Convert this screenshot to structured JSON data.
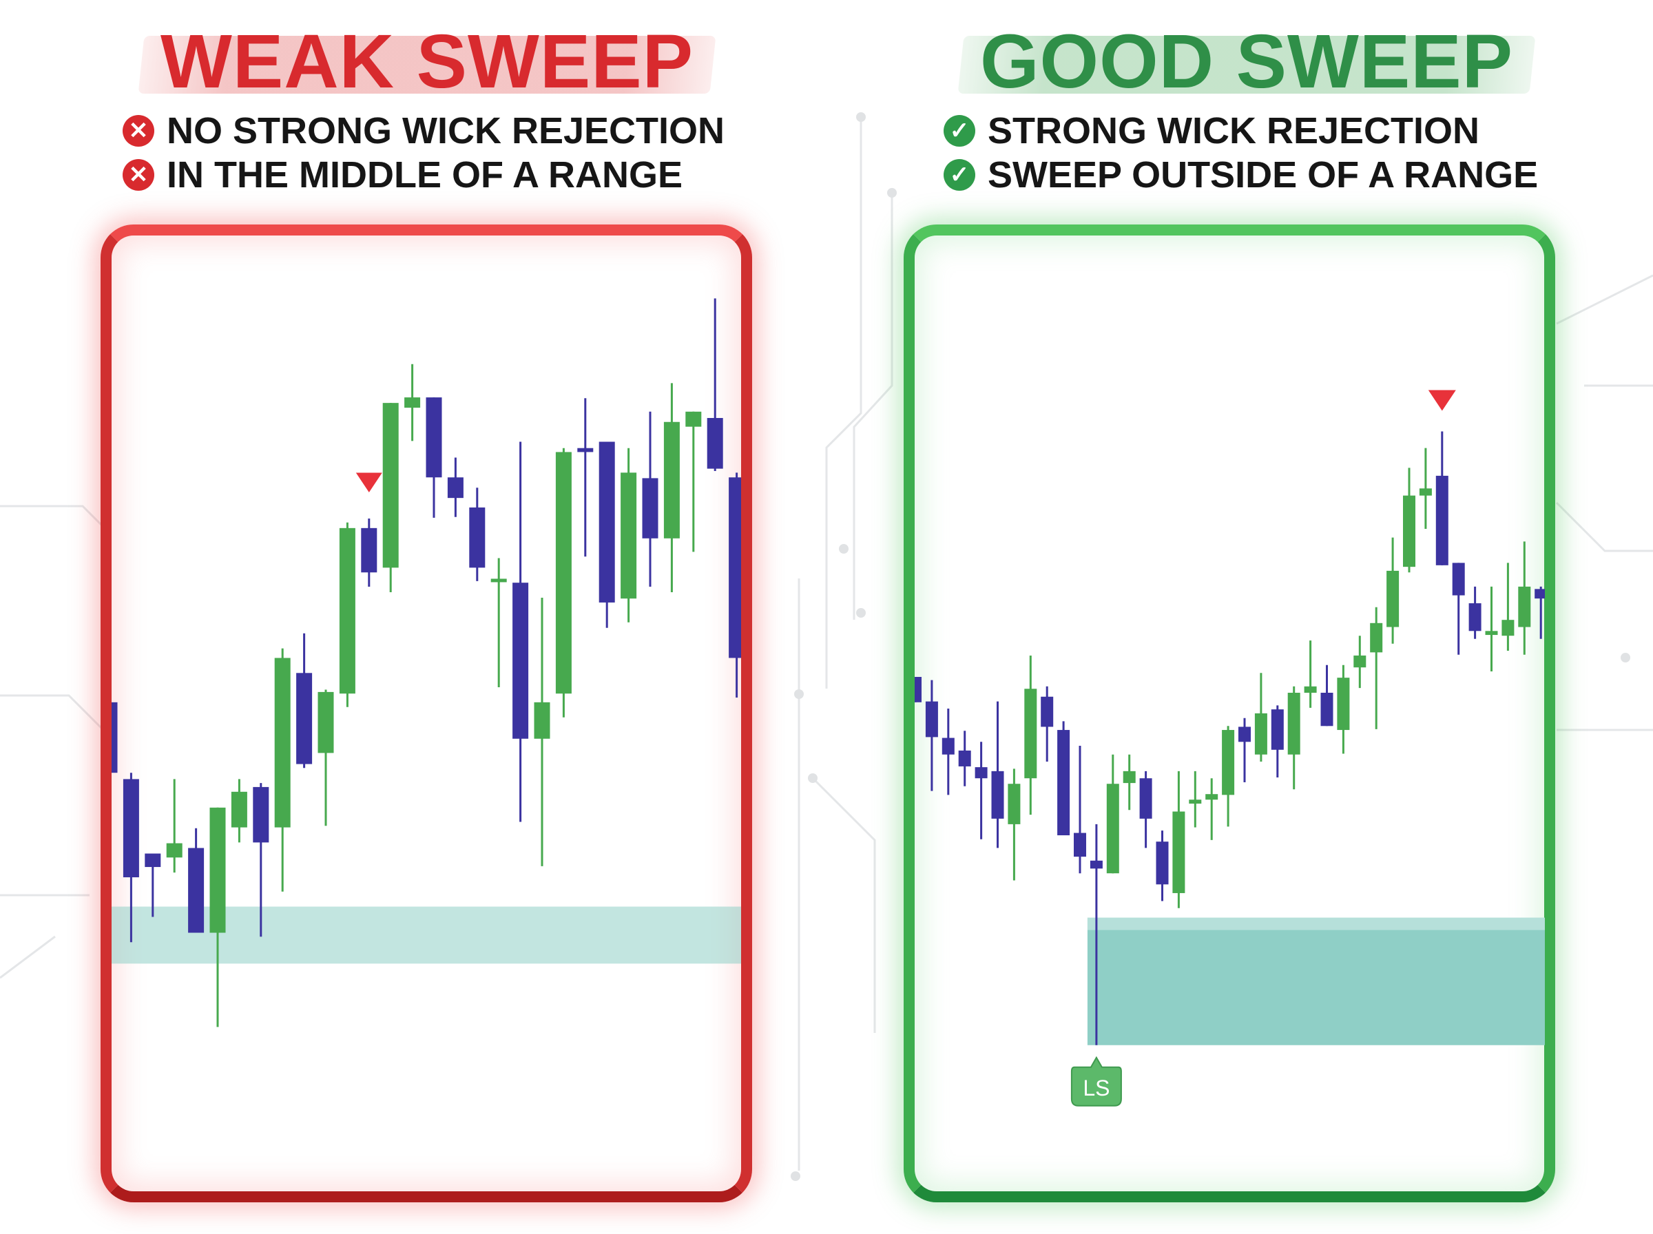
{
  "colors": {
    "bull": "#47a94e",
    "bear": "#3b33a0",
    "zone": "#8fcfc6",
    "marker": "#e8323a",
    "weak": "#d82a2e",
    "good": "#2f8f48"
  },
  "left": {
    "title": "WEAK SWEEP",
    "bullets": [
      {
        "icon": "x-circle-icon",
        "text": "NO STRONG WICK REJECTION"
      },
      {
        "icon": "x-circle-icon",
        "text": "IN THE MIDDLE OF A RANGE"
      }
    ]
  },
  "right": {
    "title": "GOOD SWEEP",
    "bullets": [
      {
        "icon": "check-circle-icon",
        "text": "STRONG WICK REJECTION"
      },
      {
        "icon": "check-circle-icon",
        "text": "SWEEP OUTSIDE OF A RANGE"
      }
    ],
    "ls_label": "LS"
  },
  "chart_data": [
    {
      "type": "candlestick",
      "title": "WEAK SWEEP",
      "ylim": [
        0,
        100
      ],
      "candle_fields": [
        "open",
        "high",
        "low",
        "close"
      ],
      "candles": [
        [
          46.1,
          46.1,
          37.2,
          37.2
        ],
        [
          36.4,
          37.2,
          15.8,
          24.0
        ],
        [
          27.0,
          27.0,
          19.0,
          25.3
        ],
        [
          26.5,
          36.4,
          24.6,
          28.3
        ],
        [
          27.7,
          30.2,
          17.0,
          17.0
        ],
        [
          17.0,
          32.8,
          5.1,
          32.8
        ],
        [
          30.3,
          36.4,
          28.4,
          34.8
        ],
        [
          35.4,
          35.9,
          16.5,
          28.4
        ],
        [
          30.3,
          52.9,
          22.2,
          51.7
        ],
        [
          49.8,
          54.8,
          37.8,
          38.3
        ],
        [
          39.7,
          47.7,
          30.5,
          47.4
        ],
        [
          47.2,
          68.8,
          45.5,
          68.1
        ],
        [
          68.1,
          69.3,
          60.7,
          62.5
        ],
        [
          63.1,
          83.9,
          60.0,
          83.9
        ],
        [
          83.3,
          88.8,
          79.1,
          84.6
        ],
        [
          84.6,
          84.6,
          69.4,
          74.5
        ],
        [
          74.5,
          77.0,
          69.5,
          71.9
        ],
        [
          70.7,
          73.2,
          61.4,
          63.1
        ],
        [
          61.3,
          64.3,
          48.0,
          61.7
        ],
        [
          61.2,
          79.0,
          31.0,
          41.5
        ],
        [
          41.5,
          59.3,
          25.4,
          46.1
        ],
        [
          47.2,
          78.2,
          44.2,
          77.7
        ],
        [
          78.2,
          84.5,
          64.5,
          77.7
        ],
        [
          79.0,
          79.0,
          55.5,
          58.7
        ],
        [
          59.2,
          78.2,
          56.2,
          75.1
        ],
        [
          74.4,
          82.8,
          60.7,
          66.8
        ],
        [
          66.8,
          86.4,
          60.0,
          81.5
        ],
        [
          80.9,
          82.8,
          65.1,
          82.8
        ],
        [
          82.0,
          97.1,
          75.3,
          75.6
        ],
        [
          74.5,
          75.1,
          46.7,
          51.7
        ]
      ],
      "zone": {
        "low": 13.1,
        "high": 20.3,
        "from_candle": 0
      },
      "marker": {
        "type": "down-triangle",
        "candle": 12
      }
    },
    {
      "type": "candlestick",
      "title": "GOOD SWEEP",
      "ylim": [
        0,
        100
      ],
      "candle_fields": [
        "open",
        "high",
        "low",
        "close"
      ],
      "candles": [
        [
          58.0,
          58.0,
          54.8,
          54.8
        ],
        [
          54.9,
          57.6,
          43.6,
          50.4
        ],
        [
          50.3,
          54.0,
          43.1,
          48.2
        ],
        [
          48.7,
          51.2,
          44.2,
          46.7
        ],
        [
          46.6,
          49.8,
          37.5,
          45.2
        ],
        [
          46.1,
          54.9,
          36.4,
          40.1
        ],
        [
          39.4,
          46.4,
          32.3,
          44.5
        ],
        [
          45.2,
          60.7,
          40.6,
          56.5
        ],
        [
          55.5,
          56.8,
          47.3,
          51.7
        ],
        [
          51.3,
          52.4,
          38.0,
          38.0
        ],
        [
          38.3,
          49.3,
          33.2,
          35.3
        ],
        [
          34.8,
          39.4,
          11.5,
          33.8
        ],
        [
          33.2,
          48.2,
          33.2,
          44.5
        ],
        [
          44.6,
          48.2,
          41.2,
          46.1
        ],
        [
          45.2,
          46.1,
          36.4,
          40.1
        ],
        [
          37.2,
          38.6,
          29.7,
          31.8
        ],
        [
          30.7,
          46.1,
          28.8,
          41.0
        ],
        [
          42.0,
          46.1,
          39.0,
          42.5
        ],
        [
          42.5,
          45.2,
          37.4,
          43.2
        ],
        [
          43.1,
          51.8,
          39.1,
          51.3
        ],
        [
          51.7,
          52.8,
          44.7,
          49.8
        ],
        [
          48.2,
          58.5,
          47.3,
          53.4
        ],
        [
          53.9,
          54.4,
          45.3,
          48.8
        ],
        [
          48.2,
          56.8,
          43.8,
          56.0
        ],
        [
          56.0,
          62.6,
          54.1,
          56.8
        ],
        [
          56.0,
          59.5,
          51.8,
          51.8
        ],
        [
          51.3,
          59.5,
          48.3,
          57.9
        ],
        [
          59.2,
          63.2,
          56.6,
          60.7
        ],
        [
          61.1,
          66.8,
          51.4,
          64.8
        ],
        [
          64.3,
          75.6,
          62.2,
          71.4
        ],
        [
          71.9,
          84.4,
          71.2,
          80.9
        ],
        [
          80.9,
          86.9,
          76.7,
          81.8
        ],
        [
          83.4,
          89.0,
          72.1,
          72.1
        ],
        [
          72.4,
          72.4,
          60.8,
          68.3
        ],
        [
          67.3,
          69.4,
          62.8,
          63.8
        ],
        [
          63.3,
          69.4,
          58.7,
          63.8
        ],
        [
          63.2,
          72.4,
          61.3,
          65.2
        ],
        [
          64.3,
          75.1,
          60.8,
          69.4
        ],
        [
          69.1,
          69.4,
          62.8,
          67.9
        ]
      ],
      "zone": {
        "low": 11.5,
        "high": 27.6,
        "from_candle": 11
      },
      "marker": {
        "type": "down-triangle",
        "candle": 32
      },
      "label": {
        "text": "LS",
        "candle": 11
      }
    }
  ]
}
